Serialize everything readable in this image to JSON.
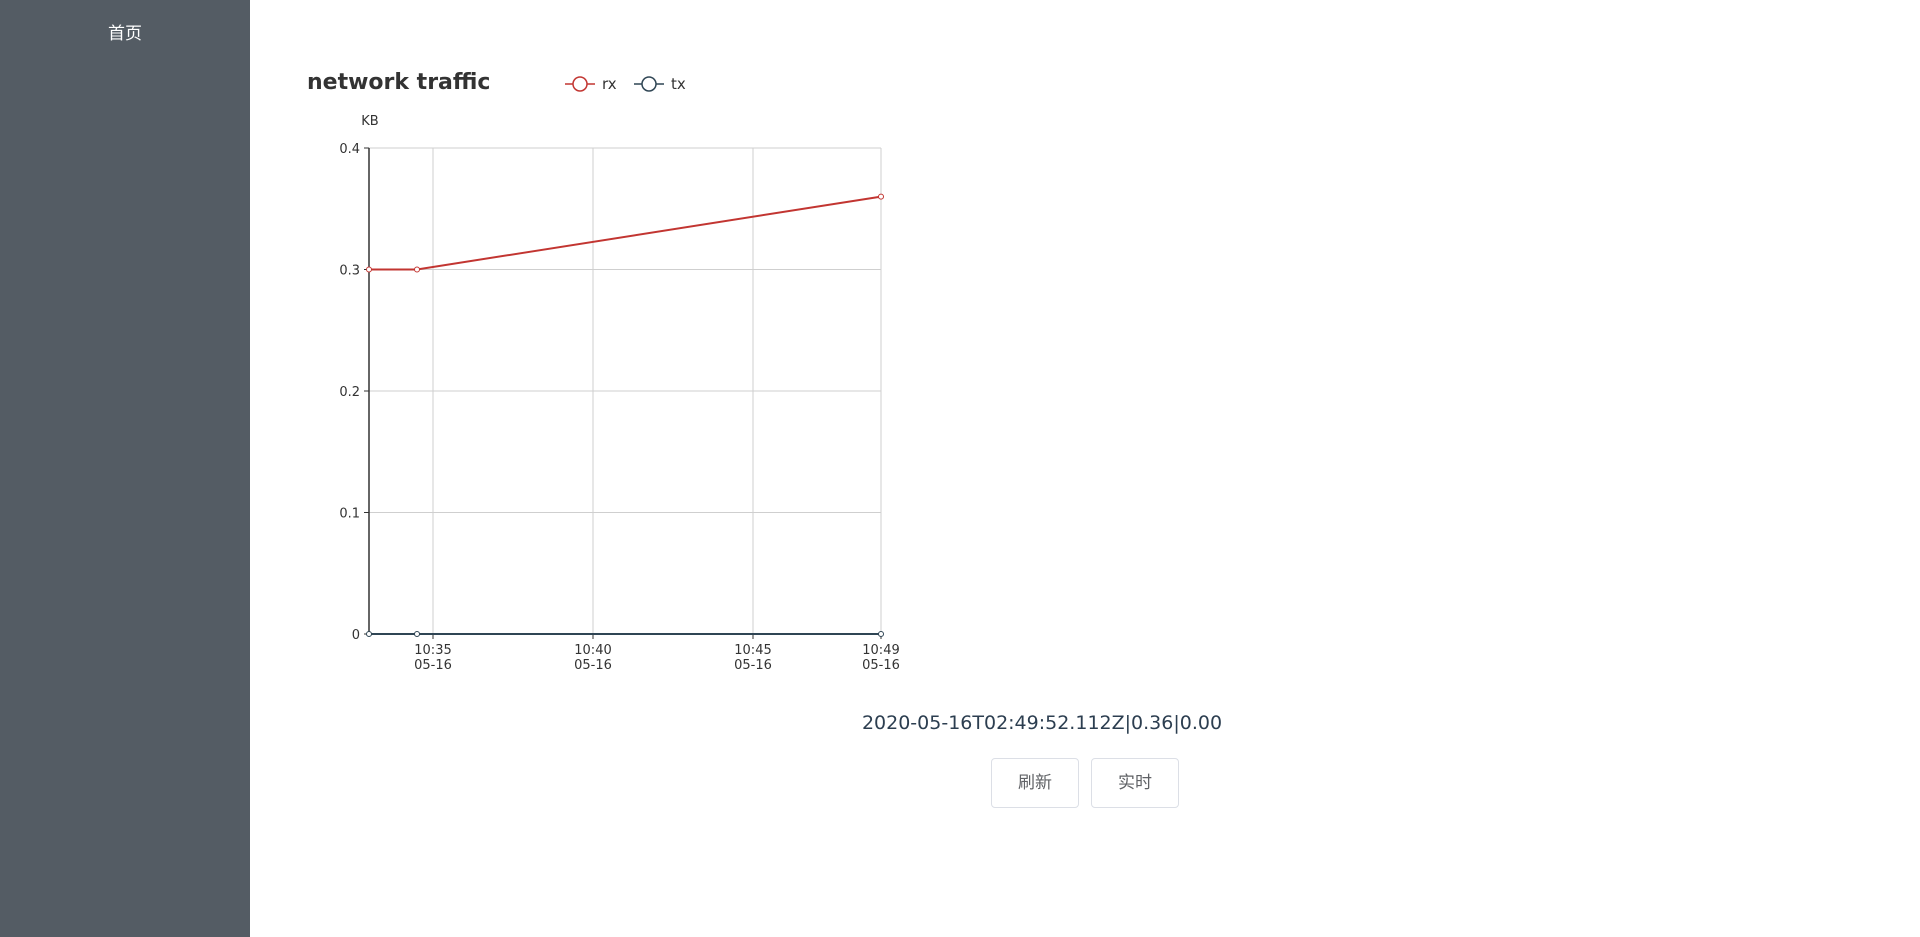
{
  "sidebar": {
    "items": [
      {
        "label": "首页"
      }
    ]
  },
  "chart_data": {
    "type": "line",
    "title": "network traffic",
    "ylabel": "KB",
    "ylim": [
      0,
      0.4
    ],
    "yticks": [
      "0",
      "0.1",
      "0.2",
      "0.3",
      "0.4"
    ],
    "xlim": [
      "2020-05-16 10:33",
      "2020-05-16 10:49"
    ],
    "xticks": [
      {
        "time": "2020-05-16 10:35",
        "line1": "10:35",
        "line2": "05-16"
      },
      {
        "time": "2020-05-16 10:40",
        "line1": "10:40",
        "line2": "05-16"
      },
      {
        "time": "2020-05-16 10:45",
        "line1": "10:45",
        "line2": "05-16"
      },
      {
        "time": "2020-05-16 10:49",
        "line1": "10:49",
        "line2": "05-16"
      }
    ],
    "legend_position": "top",
    "grid": true,
    "x": [
      "2020-05-16 10:33",
      "2020-05-16 10:34:30",
      "2020-05-16 10:49"
    ],
    "series": [
      {
        "name": "rx",
        "color": "#c23531",
        "values": [
          0.3,
          0.3,
          0.36
        ]
      },
      {
        "name": "tx",
        "color": "#2f4554",
        "values": [
          0.0,
          0.0,
          0.0
        ]
      }
    ]
  },
  "status": {
    "text": "2020-05-16T02:49:52.112Z|0.36|0.00"
  },
  "buttons": {
    "refresh_label": "刷新",
    "live_label": "实时"
  }
}
